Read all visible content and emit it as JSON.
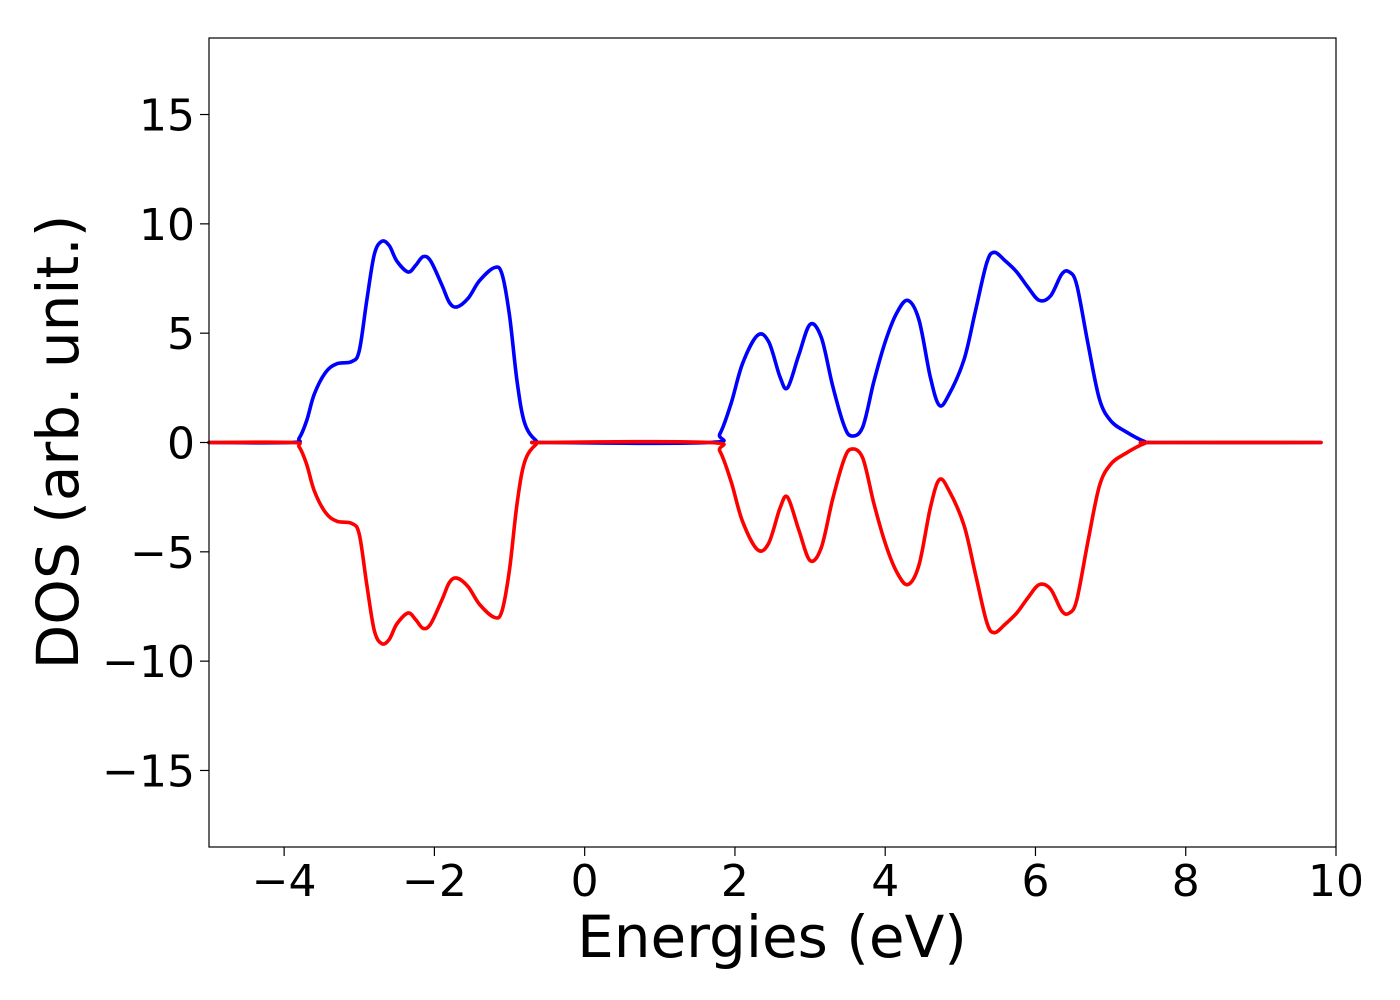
{
  "chart_data": {
    "type": "line",
    "title": "",
    "xlabel": "Energies (eV)",
    "ylabel": "DOS (arb. unit.)",
    "xlim": [
      -5,
      10
    ],
    "ylim": [
      -18.5,
      18.5
    ],
    "grid": false,
    "legend": "none",
    "x_ticks": [
      -4,
      -2,
      0,
      2,
      4,
      6,
      8,
      10
    ],
    "x_tick_labels": [
      "−4",
      "−2",
      "0",
      "2",
      "4",
      "6",
      "8",
      "10"
    ],
    "y_ticks": [
      15,
      10,
      5,
      0,
      -5,
      -10,
      -15
    ],
    "y_tick_labels": [
      "15",
      "10",
      "5",
      "0",
      "−5",
      "−10",
      "−15"
    ],
    "series": [
      {
        "color": "#0000ff",
        "points": [
          [
            -5.0,
            0.0
          ],
          [
            -3.9,
            0.0
          ],
          [
            -3.8,
            0.2
          ],
          [
            -3.7,
            1.0
          ],
          [
            -3.6,
            2.2
          ],
          [
            -3.45,
            3.2
          ],
          [
            -3.3,
            3.6
          ],
          [
            -3.1,
            3.7
          ],
          [
            -3.0,
            4.2
          ],
          [
            -2.9,
            6.5
          ],
          [
            -2.8,
            8.6
          ],
          [
            -2.7,
            9.2
          ],
          [
            -2.6,
            9.0
          ],
          [
            -2.5,
            8.3
          ],
          [
            -2.35,
            7.8
          ],
          [
            -2.25,
            8.1
          ],
          [
            -2.15,
            8.5
          ],
          [
            -2.05,
            8.3
          ],
          [
            -1.9,
            7.2
          ],
          [
            -1.8,
            6.4
          ],
          [
            -1.7,
            6.2
          ],
          [
            -1.55,
            6.6
          ],
          [
            -1.4,
            7.4
          ],
          [
            -1.2,
            8.0
          ],
          [
            -1.1,
            7.7
          ],
          [
            -1.0,
            5.8
          ],
          [
            -0.9,
            2.8
          ],
          [
            -0.8,
            0.9
          ],
          [
            -0.65,
            0.1
          ],
          [
            -0.5,
            0.0
          ],
          [
            1.65,
            0.0
          ],
          [
            1.8,
            0.4
          ],
          [
            1.95,
            1.8
          ],
          [
            2.1,
            3.6
          ],
          [
            2.3,
            4.9
          ],
          [
            2.45,
            4.6
          ],
          [
            2.6,
            3.0
          ],
          [
            2.7,
            2.5
          ],
          [
            2.85,
            4.0
          ],
          [
            3.0,
            5.4
          ],
          [
            3.15,
            4.8
          ],
          [
            3.3,
            2.6
          ],
          [
            3.45,
            0.8
          ],
          [
            3.55,
            0.3
          ],
          [
            3.7,
            0.7
          ],
          [
            3.85,
            2.8
          ],
          [
            4.0,
            4.6
          ],
          [
            4.15,
            5.9
          ],
          [
            4.3,
            6.5
          ],
          [
            4.45,
            5.6
          ],
          [
            4.6,
            3.0
          ],
          [
            4.72,
            1.7
          ],
          [
            4.85,
            2.2
          ],
          [
            5.05,
            3.8
          ],
          [
            5.2,
            6.0
          ],
          [
            5.35,
            8.2
          ],
          [
            5.45,
            8.7
          ],
          [
            5.6,
            8.3
          ],
          [
            5.75,
            7.8
          ],
          [
            5.9,
            7.1
          ],
          [
            6.05,
            6.5
          ],
          [
            6.2,
            6.7
          ],
          [
            6.35,
            7.7
          ],
          [
            6.45,
            7.8
          ],
          [
            6.55,
            7.2
          ],
          [
            6.7,
            4.5
          ],
          [
            6.85,
            2.0
          ],
          [
            7.0,
            1.0
          ],
          [
            7.2,
            0.5
          ],
          [
            7.45,
            0.05
          ],
          [
            7.6,
            0.0
          ],
          [
            9.8,
            0.0
          ]
        ]
      },
      {
        "color": "#ff0000",
        "points": [
          [
            -5.0,
            0.0
          ],
          [
            -3.9,
            0.0
          ],
          [
            -3.8,
            -0.2
          ],
          [
            -3.7,
            -1.0
          ],
          [
            -3.6,
            -2.2
          ],
          [
            -3.45,
            -3.2
          ],
          [
            -3.3,
            -3.6
          ],
          [
            -3.1,
            -3.7
          ],
          [
            -3.0,
            -4.2
          ],
          [
            -2.9,
            -6.5
          ],
          [
            -2.8,
            -8.6
          ],
          [
            -2.7,
            -9.2
          ],
          [
            -2.6,
            -9.0
          ],
          [
            -2.5,
            -8.3
          ],
          [
            -2.35,
            -7.8
          ],
          [
            -2.25,
            -8.1
          ],
          [
            -2.15,
            -8.5
          ],
          [
            -2.05,
            -8.3
          ],
          [
            -1.9,
            -7.2
          ],
          [
            -1.8,
            -6.4
          ],
          [
            -1.7,
            -6.2
          ],
          [
            -1.55,
            -6.6
          ],
          [
            -1.4,
            -7.4
          ],
          [
            -1.2,
            -8.0
          ],
          [
            -1.1,
            -7.7
          ],
          [
            -1.0,
            -5.8
          ],
          [
            -0.9,
            -2.8
          ],
          [
            -0.8,
            -0.9
          ],
          [
            -0.65,
            -0.1
          ],
          [
            -0.5,
            0.0
          ],
          [
            1.65,
            0.0
          ],
          [
            1.8,
            -0.4
          ],
          [
            1.95,
            -1.8
          ],
          [
            2.1,
            -3.6
          ],
          [
            2.3,
            -4.9
          ],
          [
            2.45,
            -4.6
          ],
          [
            2.6,
            -3.0
          ],
          [
            2.7,
            -2.5
          ],
          [
            2.85,
            -4.0
          ],
          [
            3.0,
            -5.4
          ],
          [
            3.15,
            -4.8
          ],
          [
            3.3,
            -2.6
          ],
          [
            3.45,
            -0.8
          ],
          [
            3.55,
            -0.3
          ],
          [
            3.7,
            -0.7
          ],
          [
            3.85,
            -2.8
          ],
          [
            4.0,
            -4.6
          ],
          [
            4.15,
            -5.9
          ],
          [
            4.3,
            -6.5
          ],
          [
            4.45,
            -5.6
          ],
          [
            4.6,
            -3.0
          ],
          [
            4.72,
            -1.7
          ],
          [
            4.85,
            -2.2
          ],
          [
            5.05,
            -3.8
          ],
          [
            5.2,
            -6.0
          ],
          [
            5.35,
            -8.2
          ],
          [
            5.45,
            -8.7
          ],
          [
            5.6,
            -8.3
          ],
          [
            5.75,
            -7.8
          ],
          [
            5.9,
            -7.1
          ],
          [
            6.05,
            -6.5
          ],
          [
            6.2,
            -6.7
          ],
          [
            6.35,
            -7.7
          ],
          [
            6.45,
            -7.8
          ],
          [
            6.55,
            -7.2
          ],
          [
            6.7,
            -4.5
          ],
          [
            6.85,
            -2.0
          ],
          [
            7.0,
            -1.0
          ],
          [
            7.2,
            -0.5
          ],
          [
            7.45,
            -0.05
          ],
          [
            7.6,
            0.0
          ],
          [
            9.8,
            0.0
          ]
        ]
      }
    ]
  }
}
